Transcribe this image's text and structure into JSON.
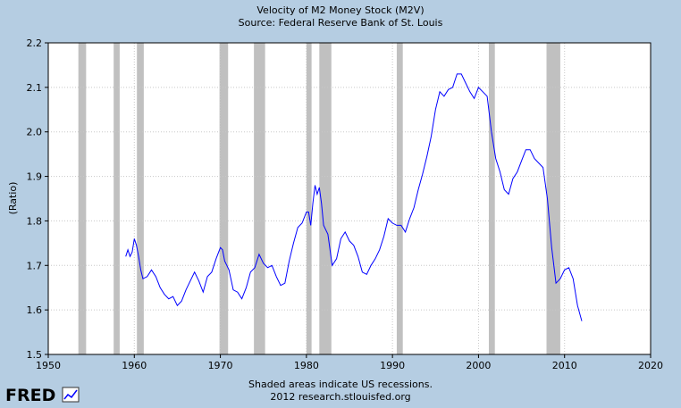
{
  "chart_data": {
    "type": "line",
    "title": "Velocity of M2 Money Stock (M2V)",
    "subtitle": "Source: Federal Reserve Bank of St. Louis",
    "ylabel": "(Ratio)",
    "xlabel": "",
    "xlim": [
      1950,
      2020
    ],
    "ylim": [
      1.5,
      2.2
    ],
    "x_ticks": [
      "1950",
      "1960",
      "1970",
      "1980",
      "1990",
      "2000",
      "2010",
      "2020"
    ],
    "y_ticks": [
      "1.5",
      "1.6",
      "1.7",
      "1.8",
      "1.9",
      "2.0",
      "2.1",
      "2.2"
    ],
    "grid": true,
    "line_color": "#0000ff",
    "recession_color": "#c0c0c0",
    "recessions": [
      [
        1953.5,
        1954.4
      ],
      [
        1957.6,
        1958.3
      ],
      [
        1960.3,
        1961.1
      ],
      [
        1969.9,
        1970.9
      ],
      [
        1973.9,
        1975.2
      ],
      [
        1980.0,
        1980.6
      ],
      [
        1981.5,
        1982.9
      ],
      [
        1990.5,
        1991.2
      ],
      [
        2001.2,
        2001.9
      ],
      [
        2007.9,
        2009.5
      ]
    ],
    "series": [
      {
        "x": [
          1959.0,
          1959.25,
          1959.5,
          1959.75,
          1960.0,
          1960.25,
          1960.5,
          1960.75,
          1961.0,
          1961.5,
          1962.0,
          1962.5,
          1963.0,
          1963.5,
          1964.0,
          1964.5,
          1965.0,
          1965.5,
          1966.0,
          1966.5,
          1967.0,
          1967.5,
          1968.0,
          1968.5,
          1969.0,
          1969.5,
          1970.0,
          1970.25,
          1970.5,
          1970.75,
          1971.0,
          1971.5,
          1972.0,
          1972.5,
          1973.0,
          1973.5,
          1974.0,
          1974.5,
          1975.0,
          1975.5,
          1976.0,
          1976.5,
          1977.0,
          1977.5,
          1978.0,
          1978.5,
          1979.0,
          1979.5,
          1980.0,
          1980.25,
          1980.5,
          1980.75,
          1981.0,
          1981.25,
          1981.5,
          1981.75,
          1982.0,
          1982.5,
          1983.0,
          1983.5,
          1984.0,
          1984.5,
          1985.0,
          1985.5,
          1986.0,
          1986.5,
          1987.0,
          1987.5,
          1988.0,
          1988.5,
          1989.0,
          1989.5,
          1990.0,
          1990.5,
          1991.0,
          1991.5,
          1992.0,
          1992.5,
          1993.0,
          1993.5,
          1994.0,
          1994.5,
          1995.0,
          1995.5,
          1996.0,
          1996.5,
          1997.0,
          1997.5,
          1998.0,
          1998.5,
          1999.0,
          1999.5,
          2000.0,
          2000.5,
          2001.0,
          2001.5,
          2002.0,
          2002.5,
          2003.0,
          2003.5,
          2004.0,
          2004.5,
          2005.0,
          2005.5,
          2006.0,
          2006.5,
          2007.0,
          2007.5,
          2008.0,
          2008.5,
          2009.0,
          2009.5,
          2010.0,
          2010.5,
          2011.0,
          2011.5,
          2012.0
        ],
        "y": [
          1.72,
          1.735,
          1.72,
          1.73,
          1.76,
          1.745,
          1.72,
          1.69,
          1.67,
          1.675,
          1.69,
          1.675,
          1.65,
          1.635,
          1.625,
          1.63,
          1.61,
          1.62,
          1.645,
          1.665,
          1.685,
          1.665,
          1.64,
          1.675,
          1.685,
          1.715,
          1.74,
          1.735,
          1.71,
          1.7,
          1.69,
          1.645,
          1.64,
          1.625,
          1.65,
          1.685,
          1.695,
          1.725,
          1.705,
          1.695,
          1.7,
          1.675,
          1.655,
          1.66,
          1.71,
          1.75,
          1.785,
          1.795,
          1.82,
          1.82,
          1.79,
          1.84,
          1.88,
          1.86,
          1.875,
          1.84,
          1.79,
          1.77,
          1.7,
          1.715,
          1.76,
          1.775,
          1.755,
          1.745,
          1.72,
          1.685,
          1.68,
          1.7,
          1.715,
          1.735,
          1.765,
          1.805,
          1.795,
          1.79,
          1.79,
          1.775,
          1.805,
          1.83,
          1.87,
          1.905,
          1.945,
          1.99,
          2.05,
          2.09,
          2.08,
          2.095,
          2.1,
          2.13,
          2.13,
          2.11,
          2.09,
          2.075,
          2.1,
          2.09,
          2.08,
          2.0,
          1.94,
          1.91,
          1.87,
          1.86,
          1.895,
          1.91,
          1.935,
          1.96,
          1.96,
          1.94,
          1.93,
          1.92,
          1.85,
          1.74,
          1.66,
          1.67,
          1.69,
          1.695,
          1.67,
          1.61,
          1.575
        ]
      }
    ]
  },
  "footer": {
    "logo": "FRED",
    "recession_note": "Shaded areas indicate US recessions.",
    "credit": "2012 research.stlouisfed.org"
  }
}
